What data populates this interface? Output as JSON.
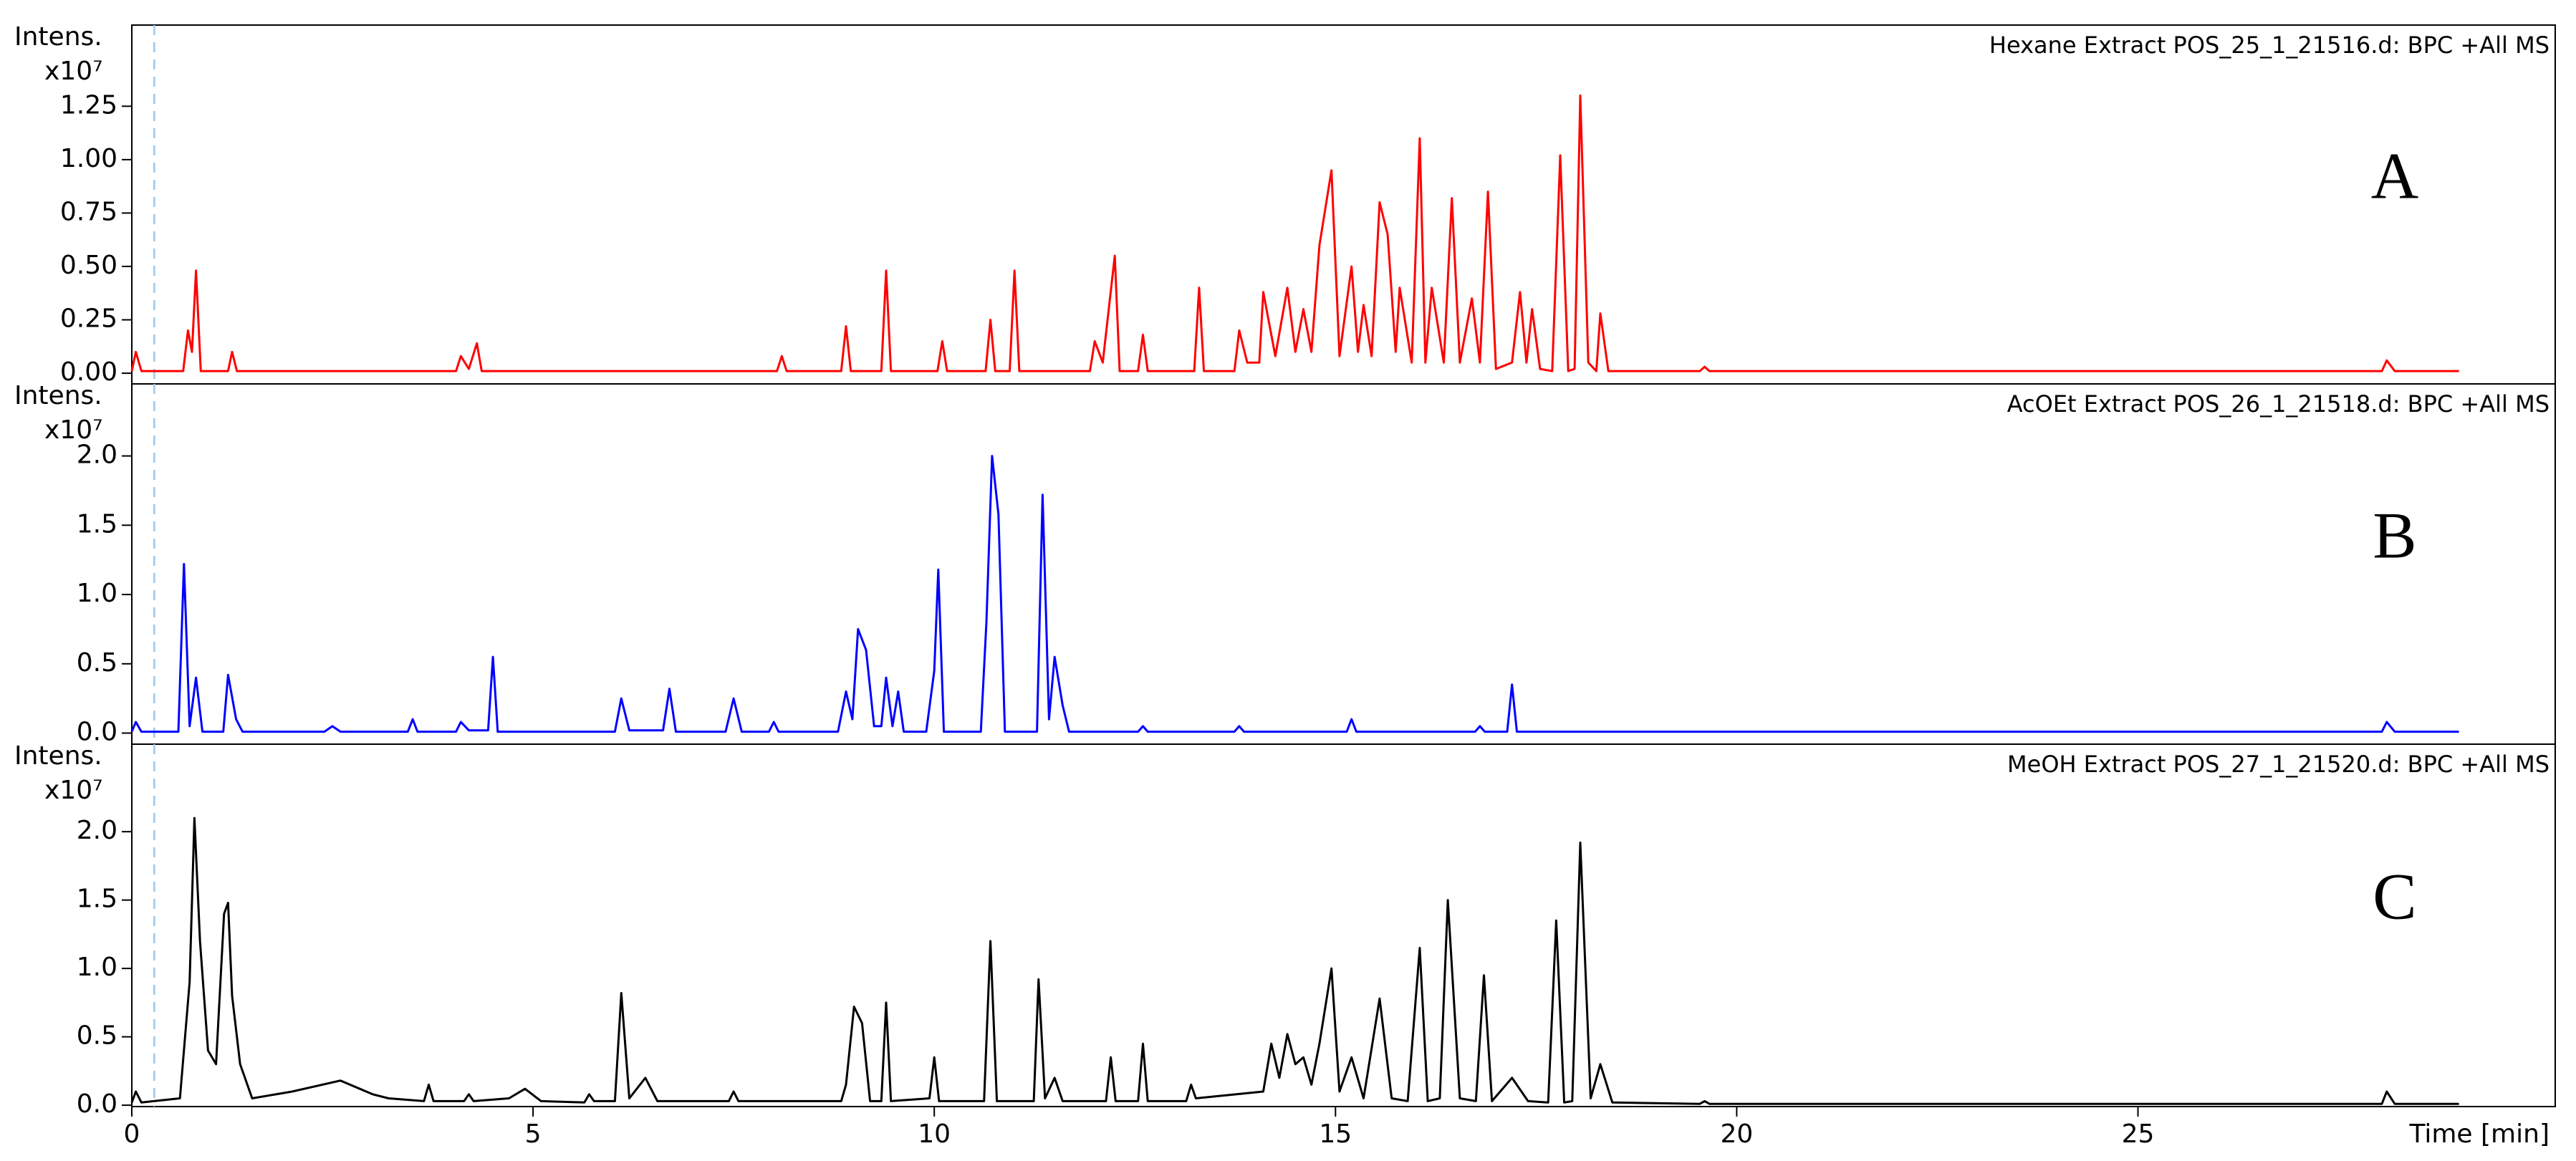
{
  "chart_data": [
    {
      "type": "line",
      "title": "Hexane Extract POS_25_1_21516.d: BPC +All MS",
      "annotation": "A",
      "ylabel": "Intens.",
      "yscale": "x10⁷",
      "x": [
        0,
        0.05,
        0.12,
        0.64,
        0.7,
        0.75,
        0.8,
        0.86,
        1.2,
        1.25,
        1.31,
        4.04,
        4.1,
        4.2,
        4.3,
        4.36,
        8.04,
        8.1,
        8.16,
        8.84,
        8.9,
        8.96,
        9.34,
        9.4,
        9.46,
        10.04,
        10.1,
        10.16,
        10.64,
        10.7,
        10.76,
        10.94,
        11.0,
        11.06,
        11.94,
        12.0,
        12.1,
        12.25,
        12.31,
        12.54,
        12.6,
        12.66,
        13.24,
        13.3,
        13.36,
        13.74,
        13.8,
        13.9,
        14.05,
        14.1,
        14.25,
        14.4,
        14.5,
        14.6,
        14.7,
        14.8,
        14.95,
        15.05,
        15.2,
        15.28,
        15.35,
        15.45,
        15.55,
        15.65,
        15.75,
        15.8,
        15.95,
        16.05,
        16.12,
        16.2,
        16.35,
        16.45,
        16.55,
        16.7,
        16.8,
        16.9,
        17.0,
        17.2,
        17.3,
        17.38,
        17.45,
        17.55,
        17.7,
        17.8,
        17.9,
        17.98,
        18.05,
        18.15,
        18.25,
        18.3,
        18.4,
        18.5,
        19.54,
        19.6,
        19.66,
        28.04,
        28.1,
        28.2,
        29.0
      ],
      "series": [
        {
          "color": "#ff0000",
          "values": [
            0.01,
            0.1,
            0.01,
            0.01,
            0.2,
            0.1,
            0.48,
            0.01,
            0.01,
            0.1,
            0.01,
            0.01,
            0.08,
            0.02,
            0.14,
            0.01,
            0.01,
            0.08,
            0.01,
            0.01,
            0.22,
            0.01,
            0.01,
            0.48,
            0.01,
            0.01,
            0.15,
            0.01,
            0.01,
            0.25,
            0.01,
            0.01,
            0.48,
            0.01,
            0.01,
            0.15,
            0.05,
            0.55,
            0.01,
            0.01,
            0.18,
            0.01,
            0.01,
            0.4,
            0.01,
            0.01,
            0.2,
            0.05,
            0.05,
            0.38,
            0.08,
            0.4,
            0.1,
            0.3,
            0.1,
            0.6,
            0.95,
            0.08,
            0.5,
            0.1,
            0.32,
            0.08,
            0.8,
            0.65,
            0.1,
            0.4,
            0.05,
            1.1,
            0.05,
            0.4,
            0.05,
            0.82,
            0.05,
            0.35,
            0.05,
            0.85,
            0.02,
            0.05,
            0.38,
            0.05,
            0.3,
            0.02,
            0.01,
            1.02,
            0.01,
            0.02,
            1.3,
            0.05,
            0.01,
            0.28,
            0.01,
            0.01,
            0.01,
            0.03,
            0.01,
            0.01,
            0.06,
            0.01,
            0.01
          ]
        }
      ],
      "xlim": [
        0,
        30.2
      ],
      "ylim": [
        -0.05,
        1.63
      ],
      "yticks": [
        {
          "value": 0,
          "label": "0.00"
        },
        0.25,
        {
          "value": 0.5,
          "label": "0.50"
        },
        0.75,
        {
          "value": 1,
          "label": "1.00"
        },
        1.25
      ],
      "vline": 0.28
    },
    {
      "type": "line",
      "title": "AcOEt Extract POS_26_1_21518.d: BPC +All MS",
      "annotation": "B",
      "ylabel": "Intens.",
      "yscale": "x10⁷",
      "x": [
        0,
        0.05,
        0.12,
        0.58,
        0.65,
        0.72,
        0.8,
        0.88,
        1.14,
        1.2,
        1.3,
        1.38,
        2.4,
        2.5,
        2.6,
        3.44,
        3.5,
        3.56,
        4.04,
        4.1,
        4.2,
        4.44,
        4.5,
        4.56,
        6.02,
        6.1,
        6.2,
        6.62,
        6.7,
        6.78,
        7.4,
        7.5,
        7.6,
        7.94,
        8.0,
        8.06,
        8.8,
        8.9,
        8.98,
        9.05,
        9.15,
        9.25,
        9.34,
        9.4,
        9.48,
        9.55,
        9.62,
        9.9,
        10.0,
        10.05,
        10.12,
        10.58,
        10.65,
        10.72,
        10.8,
        10.88,
        11.28,
        11.35,
        11.43,
        11.5,
        11.6,
        11.68,
        12.54,
        12.6,
        12.66,
        13.74,
        13.8,
        13.86,
        15.14,
        15.2,
        15.26,
        16.74,
        16.8,
        16.86,
        17.14,
        17.2,
        17.26,
        28.04,
        28.1,
        28.2,
        29.0
      ],
      "series": [
        {
          "color": "#0000ff",
          "values": [
            0.01,
            0.08,
            0.01,
            0.01,
            1.22,
            0.05,
            0.4,
            0.01,
            0.01,
            0.42,
            0.1,
            0.01,
            0.01,
            0.05,
            0.01,
            0.01,
            0.1,
            0.01,
            0.01,
            0.08,
            0.02,
            0.02,
            0.55,
            0.01,
            0.01,
            0.25,
            0.02,
            0.02,
            0.32,
            0.01,
            0.01,
            0.25,
            0.01,
            0.01,
            0.08,
            0.01,
            0.01,
            0.3,
            0.1,
            0.75,
            0.6,
            0.05,
            0.05,
            0.4,
            0.05,
            0.3,
            0.01,
            0.01,
            0.45,
            1.18,
            0.01,
            0.01,
            0.8,
            2.0,
            1.58,
            0.01,
            0.01,
            1.72,
            0.1,
            0.55,
            0.2,
            0.01,
            0.01,
            0.05,
            0.01,
            0.01,
            0.05,
            0.01,
            0.01,
            0.1,
            0.01,
            0.01,
            0.05,
            0.01,
            0.01,
            0.35,
            0.01,
            0.01,
            0.08,
            0.01,
            0.01
          ]
        }
      ],
      "xlim": [
        0,
        30.2
      ],
      "ylim": [
        -0.08,
        2.52
      ],
      "yticks": [
        {
          "value": 0,
          "label": "0.0"
        },
        0.5,
        {
          "value": 1,
          "label": "1.0"
        },
        1.5,
        {
          "value": 2,
          "label": "2.0"
        }
      ],
      "vline": 0.28
    },
    {
      "type": "line",
      "title": "MeOH Extract POS_27_1_21520.d: BPC +All MS",
      "annotation": "C",
      "ylabel": "Intens.",
      "yscale": "x10⁷",
      "xlabel": "Time [min]",
      "x": [
        0,
        0.05,
        0.12,
        0.6,
        0.72,
        0.78,
        0.85,
        0.95,
        1.05,
        1.15,
        1.2,
        1.25,
        1.35,
        1.5,
        2.0,
        2.6,
        3.0,
        3.2,
        3.64,
        3.7,
        3.76,
        4.14,
        4.2,
        4.26,
        4.7,
        4.9,
        5.1,
        5.64,
        5.7,
        5.76,
        6.02,
        6.1,
        6.2,
        6.4,
        6.55,
        7.44,
        7.5,
        7.56,
        8.84,
        8.9,
        9.0,
        9.1,
        9.2,
        9.34,
        9.4,
        9.46,
        9.94,
        10.0,
        10.06,
        10.62,
        10.7,
        10.78,
        11.24,
        11.3,
        11.38,
        11.5,
        11.6,
        12.14,
        12.2,
        12.26,
        12.54,
        12.6,
        12.66,
        13.14,
        13.2,
        13.26,
        14.1,
        14.2,
        14.3,
        14.4,
        14.5,
        14.6,
        14.7,
        14.8,
        14.95,
        15.05,
        15.2,
        15.35,
        15.55,
        15.7,
        15.9,
        16.05,
        16.15,
        16.3,
        16.4,
        16.55,
        16.75,
        16.85,
        16.95,
        17.2,
        17.4,
        17.65,
        17.75,
        17.85,
        17.95,
        18.05,
        18.18,
        18.3,
        18.45,
        19.54,
        19.6,
        19.66,
        28.04,
        28.1,
        28.2,
        29.0
      ],
      "series": [
        {
          "color": "#000000",
          "values": [
            0.02,
            0.1,
            0.02,
            0.05,
            0.9,
            2.1,
            1.2,
            0.4,
            0.3,
            1.4,
            1.48,
            0.8,
            0.3,
            0.05,
            0.1,
            0.18,
            0.08,
            0.05,
            0.03,
            0.15,
            0.03,
            0.03,
            0.08,
            0.03,
            0.05,
            0.12,
            0.03,
            0.02,
            0.08,
            0.03,
            0.03,
            0.82,
            0.05,
            0.2,
            0.03,
            0.03,
            0.1,
            0.03,
            0.03,
            0.15,
            0.72,
            0.6,
            0.03,
            0.03,
            0.75,
            0.03,
            0.05,
            0.35,
            0.03,
            0.03,
            1.2,
            0.03,
            0.03,
            0.92,
            0.05,
            0.2,
            0.03,
            0.03,
            0.35,
            0.03,
            0.03,
            0.45,
            0.03,
            0.03,
            0.15,
            0.05,
            0.1,
            0.45,
            0.2,
            0.52,
            0.3,
            0.35,
            0.15,
            0.45,
            1.0,
            0.1,
            0.35,
            0.05,
            0.78,
            0.05,
            0.03,
            1.15,
            0.03,
            0.05,
            1.5,
            0.05,
            0.03,
            0.95,
            0.03,
            0.2,
            0.03,
            0.02,
            1.35,
            0.02,
            0.03,
            1.92,
            0.05,
            0.3,
            0.02,
            0.01,
            0.03,
            0.01,
            0.01,
            0.1,
            0.01,
            0.01
          ]
        }
      ],
      "xlim": [
        0,
        30.2
      ],
      "ylim": [
        -0.01,
        2.64
      ],
      "yticks": [
        {
          "value": 0,
          "label": "0.0"
        },
        0.5,
        {
          "value": 1,
          "label": "1.0"
        },
        1.5,
        {
          "value": 2,
          "label": "2.0"
        }
      ],
      "xticks": [
        0,
        5,
        10,
        15,
        20,
        25
      ],
      "vline": 0.28
    }
  ]
}
